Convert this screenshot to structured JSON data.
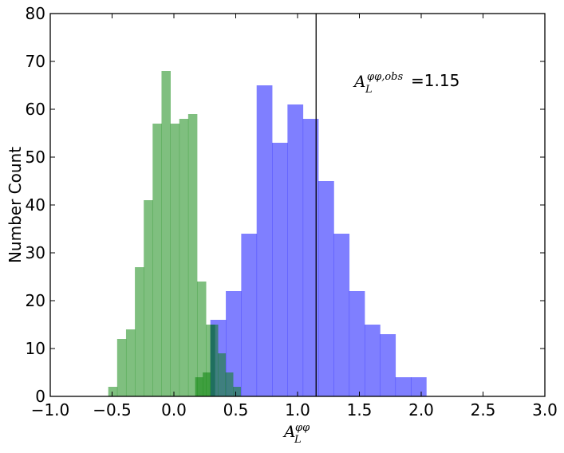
{
  "chart_data": {
    "type": "bar",
    "xlabel": {
      "base": "A",
      "sub": "L",
      "sup": "φφ"
    },
    "ylabel": "Number Count",
    "xlim": [
      -1.0,
      3.0
    ],
    "ylim": [
      0,
      80
    ],
    "x_ticks": [
      "−1.0",
      "−0.5",
      "0.0",
      "0.5",
      "1.0",
      "1.5",
      "2.0",
      "2.5",
      "3.0"
    ],
    "y_ticks": [
      "0",
      "10",
      "20",
      "30",
      "40",
      "50",
      "60",
      "70",
      "80"
    ],
    "grid": false,
    "legend": "none",
    "series": [
      {
        "color": "#008000",
        "opacity": 0.5,
        "bin_width": 0.0718,
        "bin_edges_start": -0.531,
        "values": [
          2,
          12,
          14,
          27,
          41,
          57,
          68,
          57,
          58,
          59,
          24,
          15
        ]
      },
      {
        "color": "#0000ff",
        "opacity": 0.5,
        "bin_width": 0.1247,
        "bin_edges_start": 0.295,
        "values": [
          16,
          22,
          34,
          65,
          53,
          61,
          58,
          45,
          34,
          22,
          15,
          13,
          4,
          4
        ]
      },
      {
        "color": "#008000",
        "opacity": 0.5,
        "bin_width": 0.0612,
        "bin_edges_start": 0.172,
        "values": [
          4,
          5,
          15,
          9,
          5,
          2
        ]
      }
    ],
    "vline": {
      "x": 1.15,
      "color": "#000000"
    },
    "annotation": {
      "base": "A",
      "sub": "L",
      "sup": "φφ,obs",
      "text": "=1.15",
      "x": 1.45,
      "y": 65
    }
  }
}
